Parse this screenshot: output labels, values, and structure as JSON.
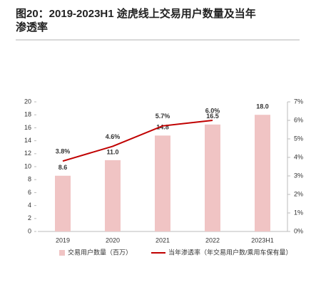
{
  "chart_data": {
    "type": "bar",
    "title": "图20：2019-2023H1 途虎线上交易用户数量及当年渗透率",
    "categories": [
      "2019",
      "2020",
      "2021",
      "2022",
      "2023H1"
    ],
    "series": [
      {
        "name": "交易用户数量（百万）",
        "type": "bar",
        "color": "#f0c4c4",
        "axis": "y",
        "values": [
          8.6,
          11.0,
          14.8,
          16.5,
          18.0
        ],
        "value_labels": [
          "8.6",
          "11.0",
          "14.8",
          "16.5",
          "18.0"
        ]
      },
      {
        "name": "当年渗透率（年交易用户数/乘用车保有量）",
        "type": "line",
        "color": "#c00000",
        "axis": "y2",
        "values": [
          3.8,
          4.6,
          5.7,
          6.0,
          null
        ],
        "value_labels": [
          "3.8%",
          "4.6%",
          "5.7%",
          "6.0%",
          null
        ]
      }
    ],
    "ylim": [
      0,
      20
    ],
    "yticks": [
      0,
      2,
      4,
      6,
      8,
      10,
      12,
      14,
      16,
      18,
      20
    ],
    "y2lim": [
      0,
      7
    ],
    "y2ticks": [
      {
        "value": 0,
        "label": "0%"
      },
      {
        "value": 1,
        "label": "1%"
      },
      {
        "value": 2,
        "label": "2%"
      },
      {
        "value": 3,
        "label": "3%"
      },
      {
        "value": 4,
        "label": "4%"
      },
      {
        "value": 5,
        "label": "5%"
      },
      {
        "value": 6,
        "label": "6%"
      },
      {
        "value": 7,
        "label": "7%"
      }
    ],
    "grid": false,
    "legend": "bottom"
  }
}
